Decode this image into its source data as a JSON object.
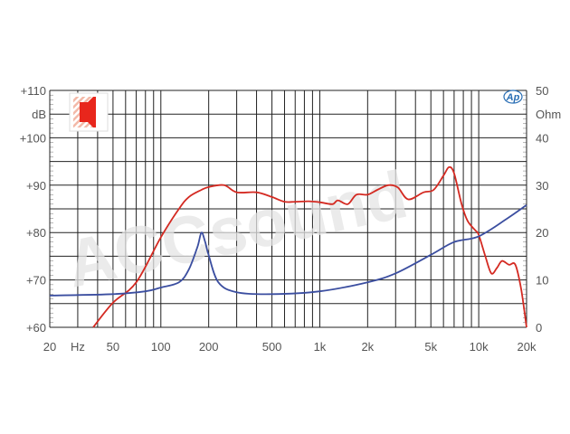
{
  "chart_data": {
    "type": "line",
    "title": "",
    "xlabel": "Hz",
    "ylabel_left": "dB",
    "ylabel_right": "Ohm",
    "x_scale": "log",
    "xlim": [
      20,
      20000
    ],
    "ylim_left": [
      60,
      110
    ],
    "ylim_right": [
      0,
      50
    ],
    "grid": true,
    "x_ticks": [
      "20",
      "Hz",
      "50",
      "100",
      "200",
      "500",
      "1k",
      "2k",
      "5k",
      "10k",
      "20k"
    ],
    "x_tick_values": [
      20,
      30,
      50,
      100,
      200,
      500,
      1000,
      2000,
      5000,
      10000,
      20000
    ],
    "y_ticks_left": [
      "+110",
      "dB",
      "+100",
      "+90",
      "+80",
      "+70",
      "+60"
    ],
    "y_tick_values_left": [
      110,
      105,
      100,
      90,
      80,
      70,
      60
    ],
    "y_ticks_right": [
      "50",
      "Ohm",
      "40",
      "30",
      "20",
      "10",
      "0"
    ],
    "y_tick_values_right": [
      50,
      45,
      40,
      30,
      20,
      10,
      0
    ],
    "series": [
      {
        "axis": "left",
        "color": "#d42a22",
        "x": [
          37.5,
          50,
          70,
          100,
          130,
          150,
          180,
          200,
          250,
          300,
          400,
          500,
          600,
          700,
          850,
          1000,
          1200,
          1300,
          1500,
          1700,
          2000,
          2300,
          2700,
          3100,
          3600,
          4500,
          5200,
          6000,
          6500,
          7000,
          7800,
          8500,
          9500,
          10000,
          11000,
          12000,
          13000,
          14000,
          15500,
          17000,
          18500,
          20000
        ],
        "y": [
          60,
          65.2,
          69.5,
          79,
          85,
          87.5,
          89,
          89.6,
          90,
          88.5,
          88.5,
          87.5,
          86.5,
          86.5,
          86.6,
          86.4,
          86,
          86.8,
          86,
          88,
          88,
          89,
          90,
          89.5,
          87,
          88.5,
          89,
          92,
          93.8,
          92.5,
          86,
          82.5,
          80.5,
          79.5,
          75,
          71.4,
          72.5,
          74,
          73.2,
          73.2,
          68,
          60
        ]
      },
      {
        "axis": "right",
        "color": "#3b4ea0",
        "x": [
          20,
          50,
          80,
          100,
          130,
          150,
          170,
          180,
          190,
          200,
          230,
          300,
          500,
          1000,
          2000,
          3000,
          5000,
          7000,
          10000,
          15000,
          20000
        ],
        "y": [
          6.7,
          7,
          7.6,
          8.4,
          9.5,
          12.2,
          17,
          20,
          18,
          15.2,
          9.5,
          7.4,
          7,
          7.6,
          9.5,
          11.4,
          15.3,
          18,
          19.2,
          22.9,
          25.8
        ]
      }
    ],
    "watermark": "ACCsound",
    "logo": "Ap",
    "icon": "speaker-icon"
  }
}
